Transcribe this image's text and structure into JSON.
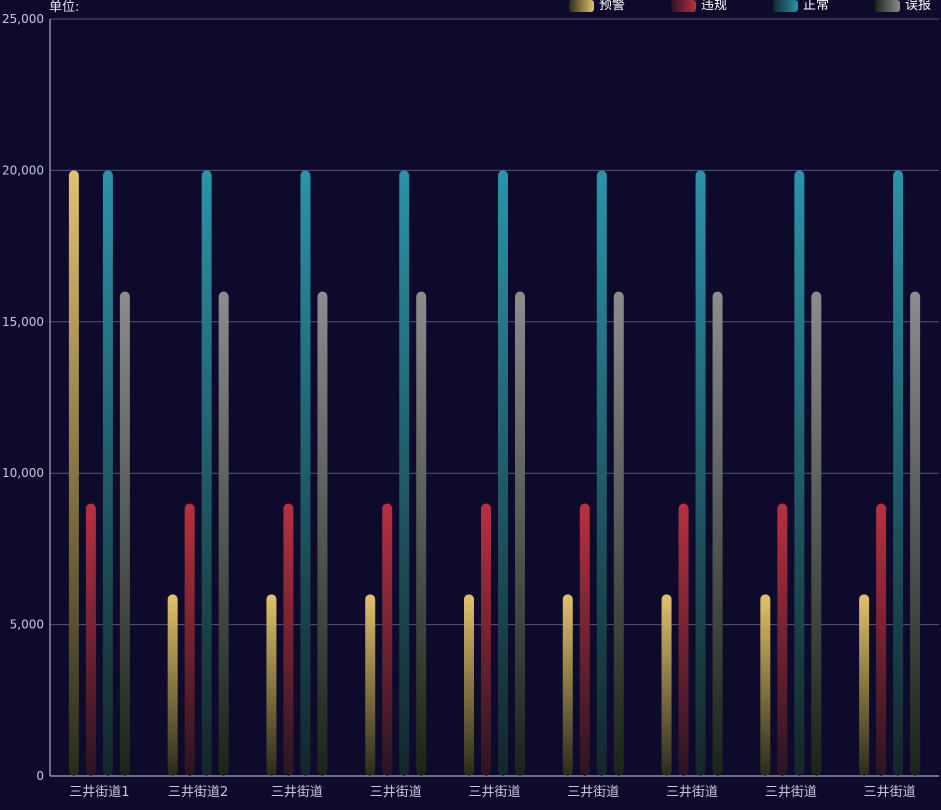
{
  "chart_data": {
    "type": "bar",
    "unit_label": "单位:",
    "categories": [
      "三井街道1",
      "三井街道2",
      "三井街道",
      "三井街道",
      "三井街道",
      "三井街道",
      "三井街道",
      "三井街道",
      "三井街道"
    ],
    "series": [
      {
        "name": "预警",
        "color": "#e2c26a",
        "values": [
          20000,
          6000,
          6000,
          6000,
          6000,
          6000,
          6000,
          6000,
          6000
        ]
      },
      {
        "name": "违规",
        "color": "#b8303f",
        "values": [
          9000,
          9000,
          9000,
          9000,
          9000,
          9000,
          9000,
          9000,
          9000
        ]
      },
      {
        "name": "正常",
        "color": "#2b93a8",
        "values": [
          20000,
          20000,
          20000,
          20000,
          20000,
          20000,
          20000,
          20000,
          20000
        ]
      },
      {
        "name": "误报",
        "color": "#8c8c8c",
        "values": [
          16000,
          16000,
          16000,
          16000,
          16000,
          16000,
          16000,
          16000,
          16000
        ]
      }
    ],
    "y_ticks": [
      "0",
      "5,000",
      "10,000",
      "15,000",
      "20,000",
      "25,000"
    ],
    "ylim": [
      0,
      25000
    ],
    "grid": true,
    "legend_position": "top-right"
  }
}
